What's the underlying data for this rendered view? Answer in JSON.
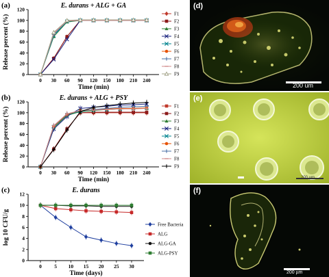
{
  "chart_data": [
    {
      "type": "line",
      "panel": "(a)",
      "title": "E. durans + ALG + GA",
      "xlabel": "Time (min)",
      "ylabel": "Release percent (%)",
      "x": [
        0,
        30,
        60,
        90,
        120,
        150,
        180,
        210,
        240
      ],
      "xticks": [
        "0",
        "30",
        "60",
        "90",
        "120",
        "150",
        "180",
        "210",
        "240"
      ],
      "yticks": [
        "0",
        "20",
        "40",
        "60",
        "80",
        "100",
        "120"
      ],
      "ylim": [
        0,
        120
      ],
      "legend_position": "right",
      "series": [
        {
          "name": "F1",
          "color": "#c0392b",
          "marker": "diamond",
          "values": [
            0,
            30,
            70,
            100,
            100,
            100,
            100,
            100,
            100
          ]
        },
        {
          "name": "F2",
          "color": "#8b1a1a",
          "marker": "square",
          "values": [
            0,
            30,
            70,
            100,
            100,
            100,
            100,
            100,
            100
          ]
        },
        {
          "name": "F3",
          "color": "#2e7d32",
          "marker": "triangle",
          "values": [
            0,
            70,
            97,
            100,
            100,
            100,
            100,
            100,
            100
          ]
        },
        {
          "name": "F4",
          "color": "#1a237e",
          "marker": "x",
          "values": [
            0,
            28,
            65,
            100,
            100,
            100,
            100,
            100,
            100
          ]
        },
        {
          "name": "F5",
          "color": "#00838f",
          "marker": "x",
          "values": [
            0,
            72,
            98,
            100,
            100,
            100,
            100,
            100,
            100
          ]
        },
        {
          "name": "F6",
          "color": "#e65100",
          "marker": "circle",
          "values": [
            0,
            75,
            99,
            100,
            100,
            100,
            100,
            100,
            100
          ]
        },
        {
          "name": "F7",
          "color": "#4a6fa5",
          "marker": "plus",
          "values": [
            0,
            74,
            99,
            100,
            100,
            100,
            100,
            100,
            100
          ]
        },
        {
          "name": "F8",
          "color": "#d08a8a",
          "marker": "dash",
          "values": [
            0,
            76,
            99,
            100,
            100,
            100,
            100,
            100,
            100
          ]
        },
        {
          "name": "F9",
          "color": "#a5a58a",
          "marker": "triangle-open",
          "values": [
            0,
            78,
            100,
            101,
            101,
            101,
            101,
            101,
            101
          ]
        }
      ]
    },
    {
      "type": "line",
      "panel": "(b)",
      "title": "E. durans + ALG + PSY",
      "xlabel": "Time (min)",
      "ylabel": "Release percent (%)",
      "x": [
        0,
        30,
        60,
        90,
        120,
        150,
        180,
        210,
        240
      ],
      "xticks": [
        "0",
        "30",
        "60",
        "90",
        "120",
        "150",
        "180",
        "210",
        "240"
      ],
      "yticks": [
        "0",
        "20",
        "40",
        "60",
        "80",
        "100",
        "120"
      ],
      "ylim": [
        0,
        120
      ],
      "legend_position": "right",
      "series": [
        {
          "name": "F1",
          "color": "#c0392b",
          "marker": "square",
          "values": [
            0,
            33,
            70,
            100,
            100,
            100,
            100,
            100,
            100
          ]
        },
        {
          "name": "F2",
          "color": "#8b1a1a",
          "marker": "square",
          "values": [
            0,
            33,
            70,
            100,
            101,
            101,
            101,
            101,
            101
          ]
        },
        {
          "name": "F3",
          "color": "#2e7d32",
          "marker": "triangle",
          "values": [
            0,
            72,
            95,
            102,
            104,
            106,
            107,
            108,
            108
          ]
        },
        {
          "name": "F4",
          "color": "#1a237e",
          "marker": "x",
          "values": [
            0,
            70,
            93,
            108,
            110,
            112,
            114,
            115,
            116
          ]
        },
        {
          "name": "F5",
          "color": "#00838f",
          "marker": "x",
          "values": [
            0,
            74,
            96,
            103,
            105,
            106,
            107,
            108,
            109
          ]
        },
        {
          "name": "F6",
          "color": "#e65100",
          "marker": "circle",
          "values": [
            0,
            75,
            97,
            104,
            106,
            107,
            108,
            108,
            109
          ]
        },
        {
          "name": "F7",
          "color": "#4a6fa5",
          "marker": "plus",
          "values": [
            0,
            76,
            98,
            104,
            106,
            108,
            110,
            111,
            112
          ]
        },
        {
          "name": "F8",
          "color": "#d08a8a",
          "marker": "dash",
          "values": [
            0,
            76,
            98,
            104,
            105,
            106,
            107,
            107,
            108
          ]
        },
        {
          "name": "F9",
          "color": "#000000",
          "marker": "plus",
          "values": [
            0,
            32,
            68,
            102,
            110,
            113,
            116,
            118,
            119
          ]
        }
      ]
    },
    {
      "type": "line",
      "panel": "(c)",
      "title": "E. durans",
      "xlabel": "Time (days)",
      "ylabel": "log 10 CFU/g",
      "x": [
        0,
        5,
        10,
        15,
        20,
        25,
        30
      ],
      "xticks": [
        "0",
        "5",
        "10",
        "15",
        "20",
        "25",
        "30"
      ],
      "yticks": [
        "0",
        "2",
        "4",
        "6",
        "8",
        "10",
        "12"
      ],
      "ylim": [
        0,
        12
      ],
      "legend_position": "right",
      "series": [
        {
          "name": "Free Bacteria",
          "color": "#1f3f9f",
          "marker": "diamond",
          "values": [
            10,
            7.8,
            6.0,
            4.3,
            3.7,
            3.1,
            2.7
          ]
        },
        {
          "name": "ALG",
          "color": "#c62828",
          "marker": "square",
          "values": [
            10,
            9.4,
            9.2,
            9.0,
            8.9,
            8.8,
            8.7
          ]
        },
        {
          "name": "ALG-GA",
          "color": "#111111",
          "marker": "circle",
          "values": [
            10,
            10,
            9.9,
            9.9,
            9.8,
            9.8,
            9.8
          ]
        },
        {
          "name": "ALG-PSY",
          "color": "#2e7d32",
          "marker": "square",
          "values": [
            10,
            10,
            10,
            10,
            10,
            10,
            10
          ]
        }
      ]
    }
  ],
  "panels": {
    "d": {
      "label": "(d)",
      "scale": "200 um"
    },
    "e": {
      "label": "(e)",
      "scale": "200 µm"
    },
    "f": {
      "label": "(f)",
      "scale": "200 µm"
    }
  }
}
